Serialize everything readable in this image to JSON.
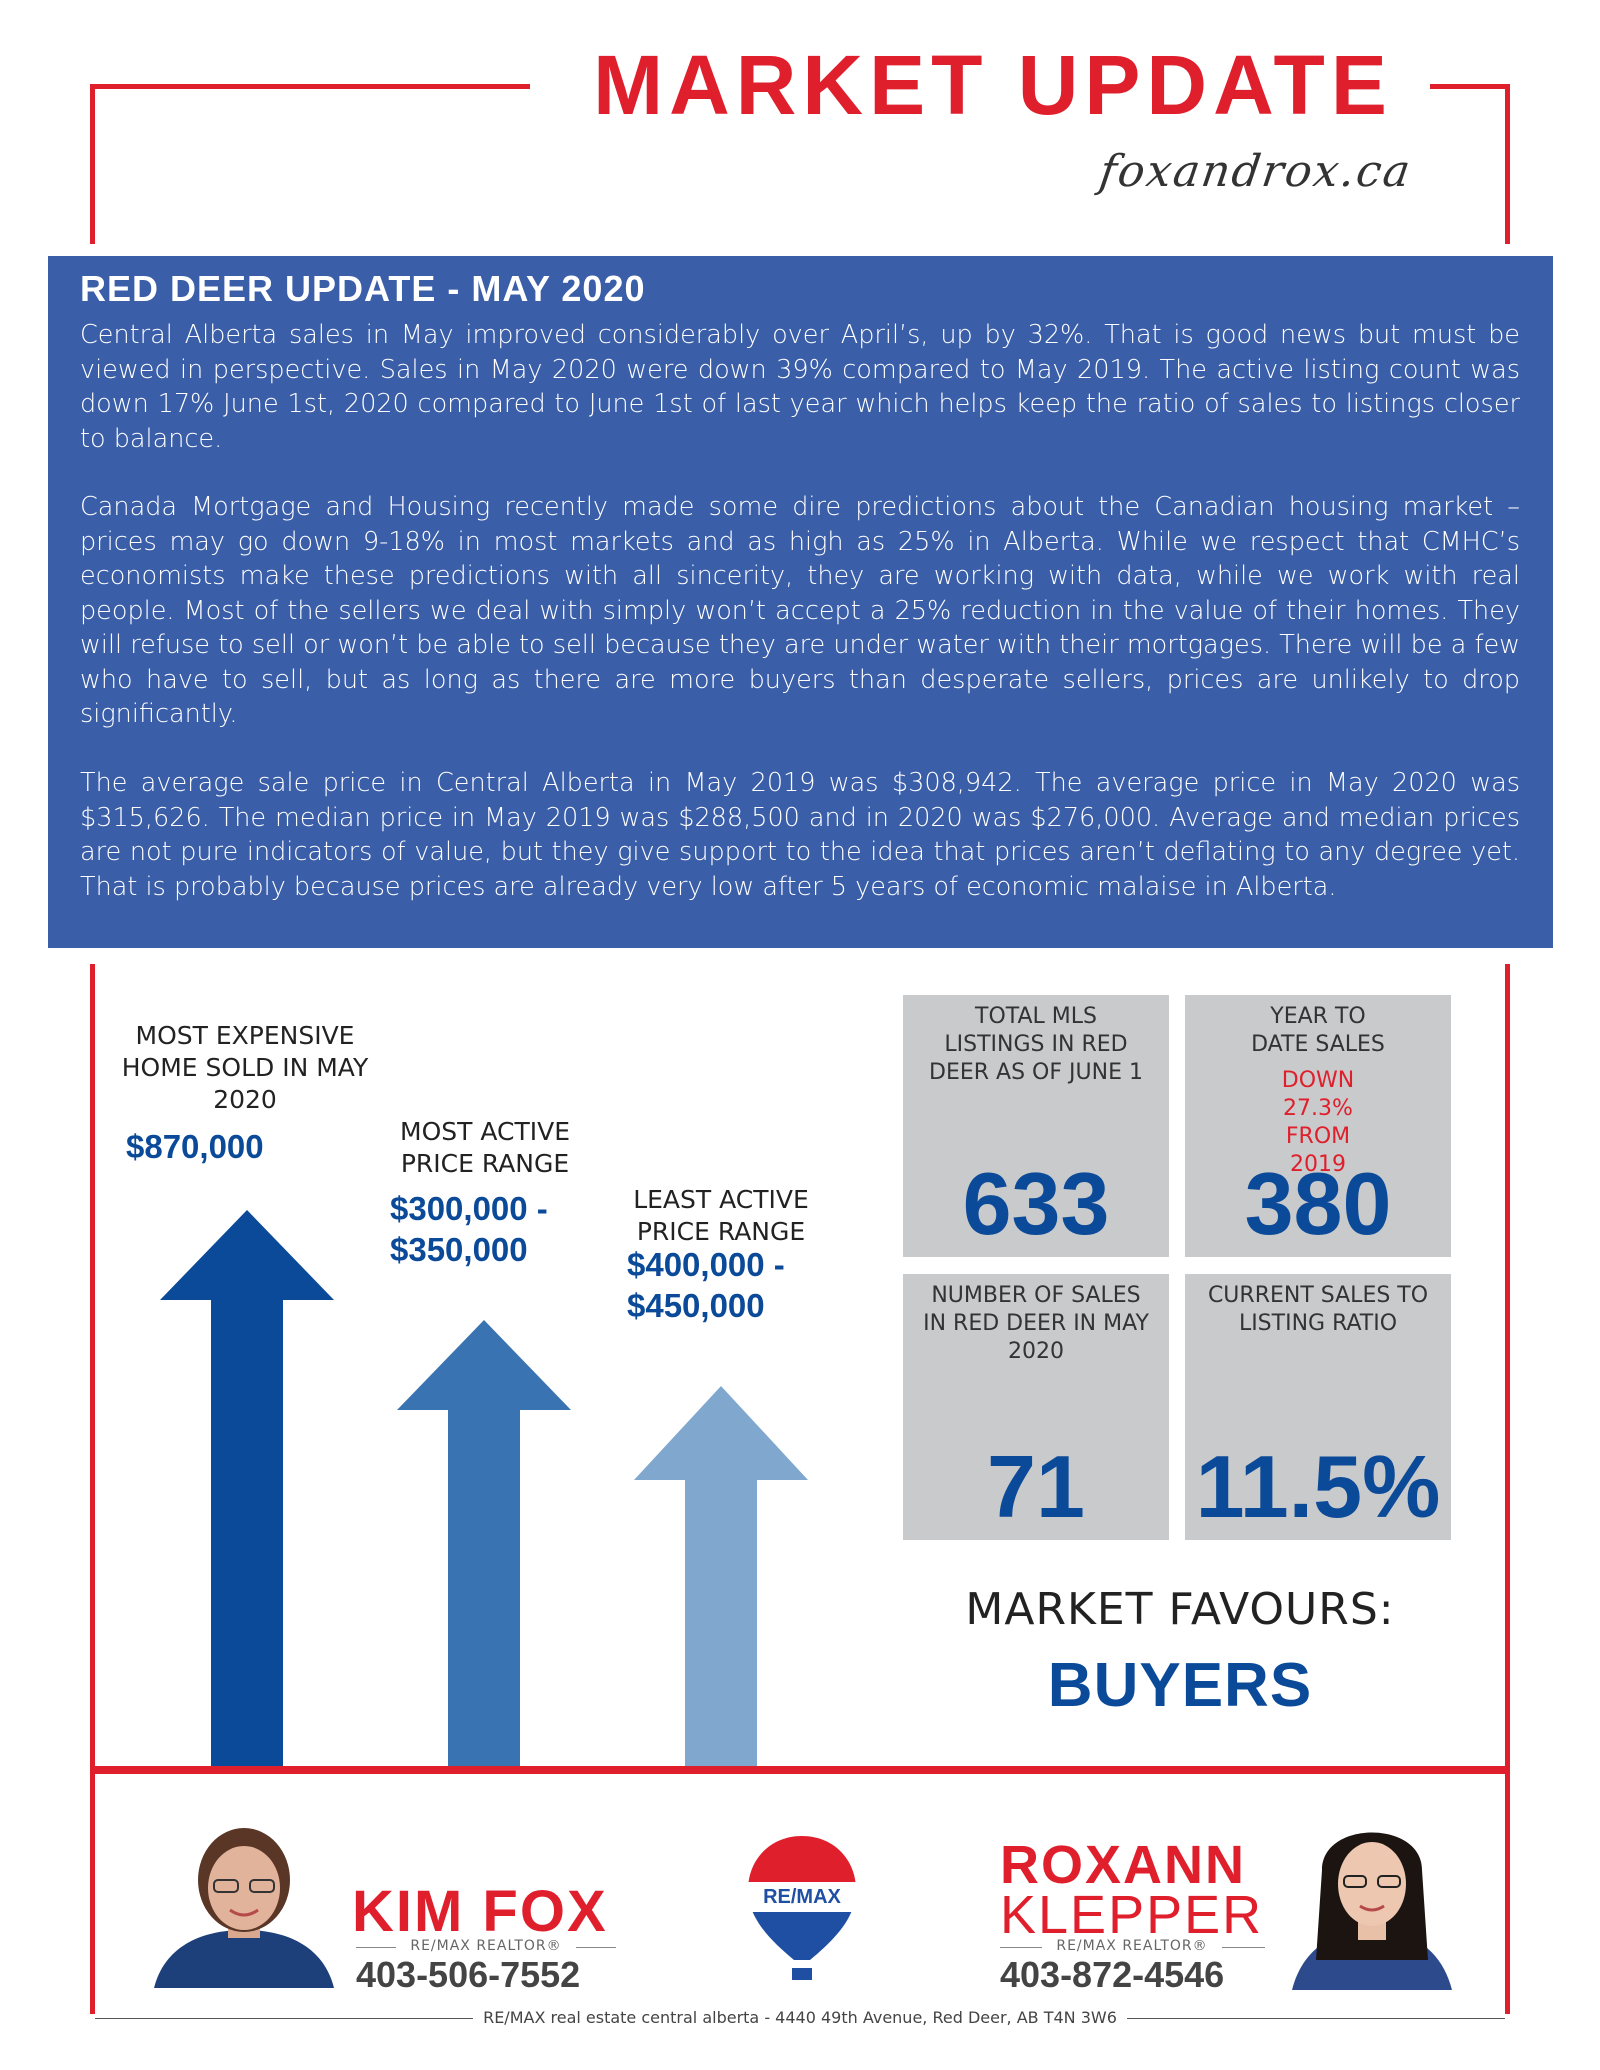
{
  "header": {
    "title": "MARKET UPDATE",
    "website": "foxandrox.ca"
  },
  "update": {
    "heading": "RED DEER UPDATE - MAY 2020",
    "paragraphs": [
      "Central Alberta sales in May improved considerably over April’s, up by 32%. That is good news but must be viewed in perspective. Sales in May 2020 were down 39% compared to May 2019. The active listing count was down 17% June 1st, 2020 compared to June 1st of last year which helps keep the ratio of sales to listings closer to balance.",
      "Canada Mortgage and Housing recently made some dire predictions about the Canadian housing market – prices may go down 9-18% in most markets and as high as 25% in Alberta. While we respect that CMHC’s economists make these predictions with all sincerity, they are working with data, while we work with real people. Most of the sellers we deal with simply won’t accept a 25% reduction in the value of their homes. They will refuse to sell or won’t be able to sell because they are under water with their mortgages. There will be a few who have to sell, but as long as there are more buyers than desperate sellers, prices are unlikely to drop significantly.",
      "The average sale price in Central Alberta in May 2019 was $308,942. The average price in May 2020 was $315,626. The median price in May 2019 was $288,500 and in 2020 was $276,000. Average and median prices are not pure indicators of value, but they give support to the idea that prices aren’t deflating to any degree yet. That is probably because prices are already very low after 5 years of economic malaise in Alberta."
    ]
  },
  "arrows": {
    "expensive": {
      "label": "MOST EXPENSIVE HOME SOLD IN MAY  2020",
      "value": "$870,000",
      "color": "#0b4a99"
    },
    "most_active": {
      "label": "MOST ACTIVE PRICE RANGE",
      "value_line1": "$300,000 -",
      "value_line2": "$350,000",
      "color": "#3a73b1"
    },
    "least_active": {
      "label": "LEAST ACTIVE PRICE RANGE",
      "value_line1": "$400,000 -",
      "value_line2": "$450,000",
      "color": "#80a8cf"
    }
  },
  "stats": {
    "listings": {
      "label": "TOTAL MLS LISTINGS IN RED DEER AS OF JUNE 1",
      "value": "633"
    },
    "ytd": {
      "label": "YEAR TO DATE SALES",
      "sub": "DOWN 27.3% FROM 2019",
      "value": "380"
    },
    "sales": {
      "label": "NUMBER OF SALES IN RED DEER IN MAY 2020",
      "value": "71"
    },
    "ratio": {
      "label": "CURRENT SALES TO LISTING RATIO",
      "value": "11.5%"
    }
  },
  "market": {
    "favours_label": "MARKET FAVOURS:",
    "favours_value": "BUYERS"
  },
  "agents": {
    "kim": {
      "name": "KIM FOX",
      "title": "RE/MAX REALTOR®",
      "phone": "403-506-7552"
    },
    "roxann": {
      "first": "ROXANN",
      "last": "KLEPPER",
      "title": "RE/MAX REALTOR®",
      "phone": "403-872-4546"
    }
  },
  "logo": {
    "text": "RE/MAX"
  },
  "footer": {
    "address": "RE/MAX real estate central alberta  -  4440 49th Avenue, Red Deer, AB  T4N 3W6"
  },
  "colors": {
    "red": "#e01f2d",
    "blue_box": "#3b5ea8",
    "navy": "#0b4a99",
    "tile": "#c9cacb"
  }
}
